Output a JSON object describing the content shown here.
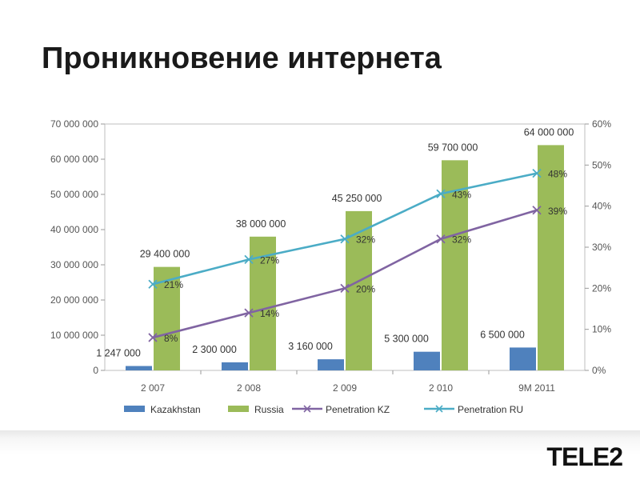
{
  "slide": {
    "title": "Проникновение интернета",
    "logo_text": "TELE2"
  },
  "colors": {
    "kazakhstan": "#4f81bd",
    "russia": "#9bbb59",
    "penetration_kz": "#8064a2",
    "penetration_ru": "#4bacc6"
  },
  "chart_data": {
    "type": "bar",
    "categories": [
      "2 007",
      "2 008",
      "2 009",
      "2 010",
      "9M 2011"
    ],
    "series": [
      {
        "name": "Kazakhstan",
        "type": "bar",
        "axis": "left",
        "values": [
          1247000,
          2300000,
          3160000,
          5300000,
          6500000
        ],
        "labels": [
          "1 247 000",
          "2 300 000",
          "3 160 000",
          "5 300 000",
          "6 500 000"
        ]
      },
      {
        "name": "Russia",
        "type": "bar",
        "axis": "left",
        "values": [
          29400000,
          38000000,
          45250000,
          59700000,
          64000000
        ],
        "labels": [
          "29 400 000",
          "38 000 000",
          "45 250 000",
          "59 700 000",
          "64 000 000"
        ]
      },
      {
        "name": "Penetration KZ",
        "type": "line",
        "axis": "right",
        "values": [
          8,
          14,
          20,
          32,
          39
        ],
        "labels": [
          "8%",
          "14%",
          "20%",
          "32%",
          "39%"
        ]
      },
      {
        "name": "Penetration RU",
        "type": "line",
        "axis": "right",
        "values": [
          21,
          27,
          32,
          43,
          48
        ],
        "labels": [
          "21%",
          "27%",
          "32%",
          "43%",
          "48%"
        ]
      }
    ],
    "ylim": [
      0,
      70000000
    ],
    "y_ticks": [
      "0",
      "10 000 000",
      "20 000 000",
      "30 000 000",
      "40 000 000",
      "50 000 000",
      "60 000 000",
      "70 000 000"
    ],
    "y2lim": [
      0,
      60
    ],
    "y2_ticks": [
      "0%",
      "10%",
      "20%",
      "30%",
      "40%",
      "50%",
      "60%"
    ],
    "grid": false,
    "legend_position": "bottom"
  }
}
